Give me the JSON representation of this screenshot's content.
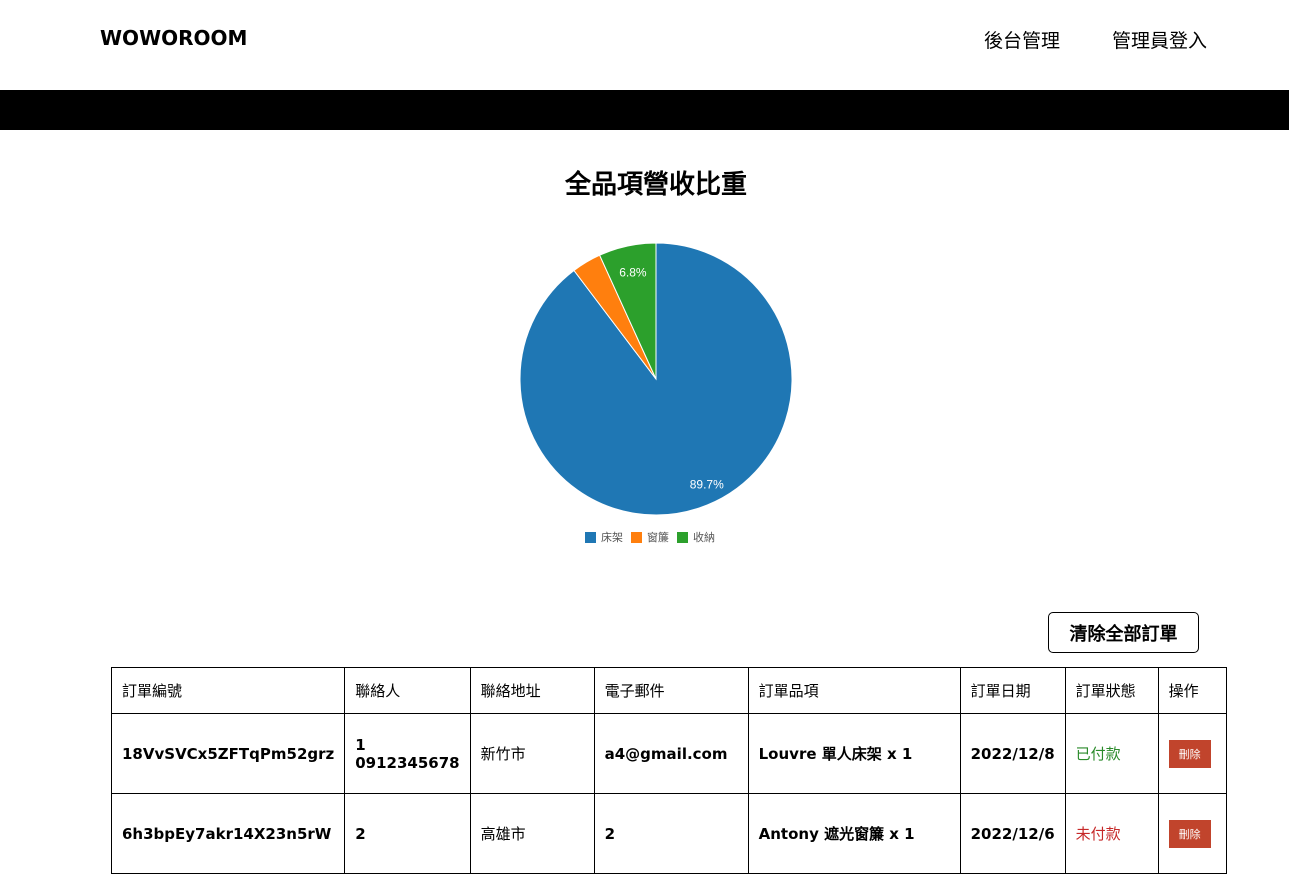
{
  "header": {
    "logo": "WOWOROOM",
    "nav": [
      {
        "label": "後台管理"
      },
      {
        "label": "管理員登入"
      }
    ]
  },
  "chart": {
    "title": "全品項營收比重",
    "slice_labels": [
      "89.7%",
      "6.8%"
    ]
  },
  "chart_data": {
    "type": "pie",
    "title": "全品項營收比重",
    "categories": [
      "床架",
      "窗簾",
      "收納"
    ],
    "values": [
      89.7,
      3.5,
      6.8
    ],
    "colors": [
      "#1f77b4",
      "#ff7f0e",
      "#2ca02c"
    ],
    "legend": "bottom"
  },
  "actions": {
    "clear_all": "清除全部訂單"
  },
  "table": {
    "headers": [
      "訂單編號",
      "聯絡人",
      "聯絡地址",
      "電子郵件",
      "訂單品項",
      "訂單日期",
      "訂單狀態",
      "操作"
    ],
    "rows": [
      {
        "id": "18VvSVCx5ZFTqPm52grz",
        "contact_name": "1",
        "contact_phone": "0912345678",
        "address": "新竹市",
        "email": "a4@gmail.com",
        "items": "Louvre 單人床架 x 1",
        "date": "2022/12/8",
        "status": "已付款",
        "action": "刪除"
      },
      {
        "id": "6h3bpEy7akr14X23n5rW",
        "contact_name": "2",
        "contact_phone": "",
        "address": "高雄市",
        "email": "2",
        "items": "Antony 遮光窗簾 x 1",
        "date": "2022/12/6",
        "status": "未付款",
        "action": "刪除"
      }
    ]
  }
}
